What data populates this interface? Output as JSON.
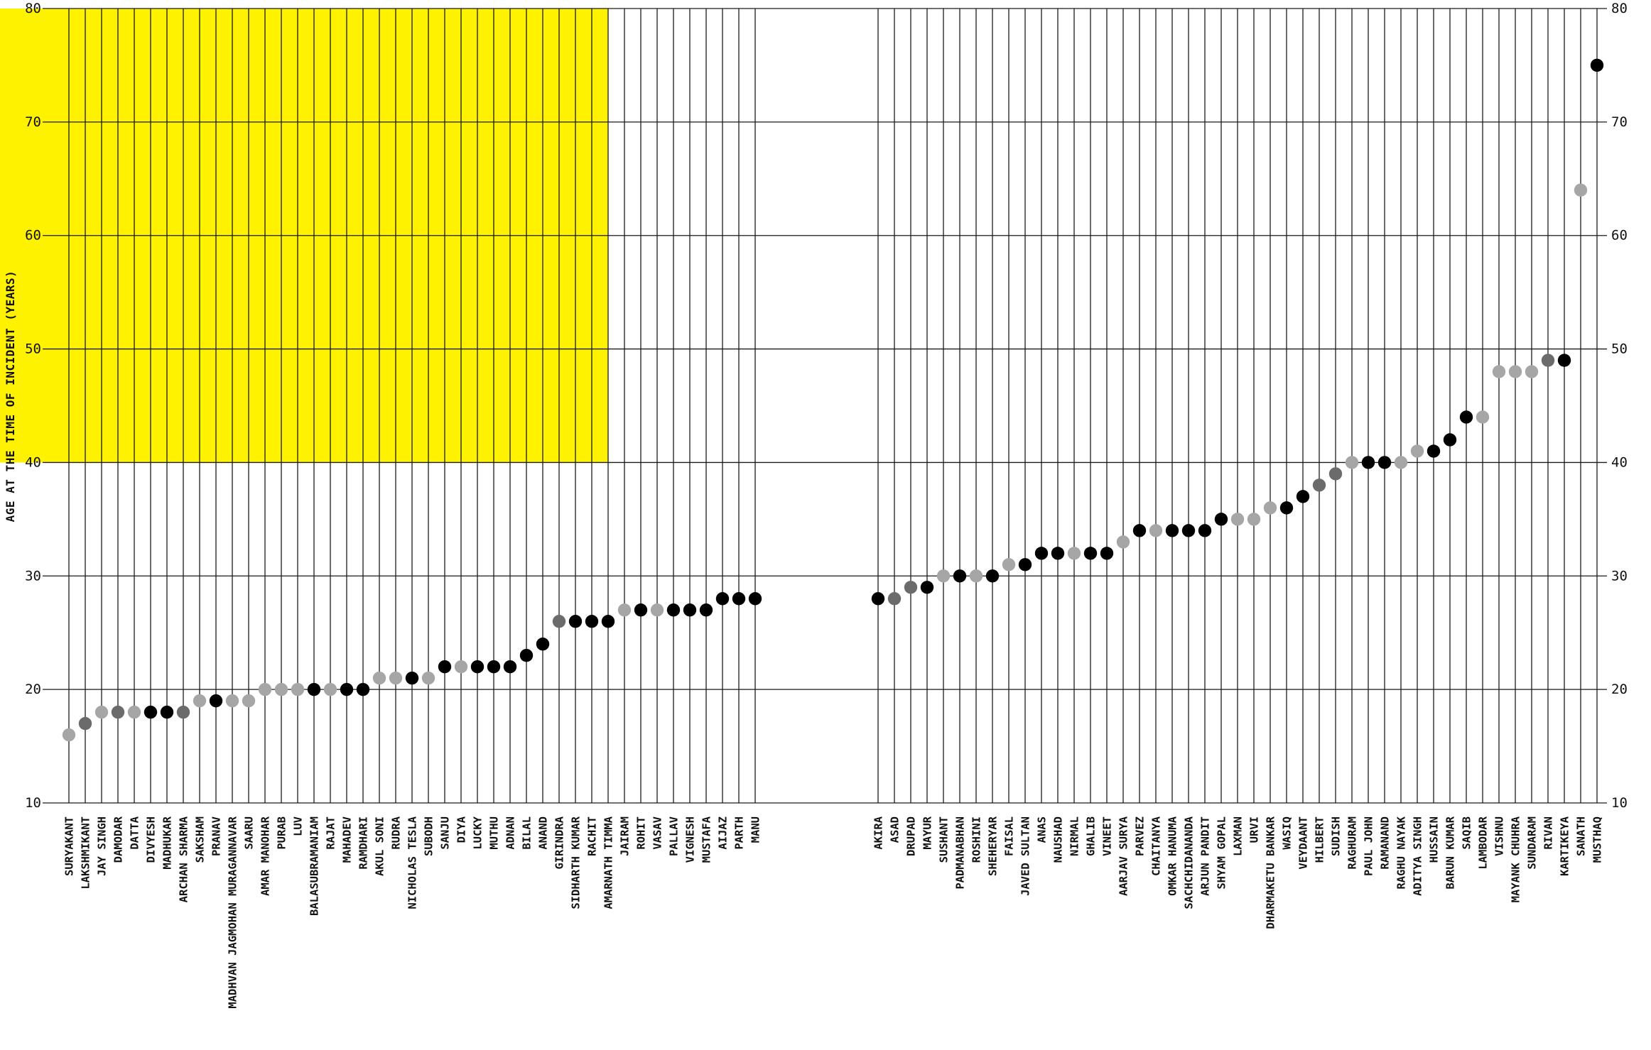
{
  "chart_data": {
    "type": "scatter",
    "ylabel": "AGE AT THE TIME OF INCIDENT (YEARS)",
    "ylim": [
      10,
      80
    ],
    "yticks": [
      10,
      20,
      30,
      40,
      50,
      60,
      70,
      80
    ],
    "grid": true,
    "highlight_region": {
      "y_from": 40,
      "y_to": 80,
      "x_from_index": 0,
      "x_to_index": 33,
      "color": "#FFF200"
    },
    "shade_colors": {
      "dark": "#000000",
      "mid": "#6b6b6b",
      "light": "#a6a6a6"
    },
    "line_color": "#1a1a1a",
    "groups": [
      {
        "points": [
          {
            "name": "SURYAKANT",
            "age": 16,
            "shade": "light"
          },
          {
            "name": "LAKSHMIKANT",
            "age": 17,
            "shade": "mid"
          },
          {
            "name": "JAY SINGH",
            "age": 18,
            "shade": "light"
          },
          {
            "name": "DAMODAR",
            "age": 18,
            "shade": "mid"
          },
          {
            "name": "DATTA",
            "age": 18,
            "shade": "light"
          },
          {
            "name": "DIVYESH",
            "age": 18,
            "shade": "dark"
          },
          {
            "name": "MADHUKAR",
            "age": 18,
            "shade": "dark"
          },
          {
            "name": "ARCHAN SHARMA",
            "age": 18,
            "shade": "mid"
          },
          {
            "name": "SAKSHAM",
            "age": 19,
            "shade": "light"
          },
          {
            "name": "PRANAV",
            "age": 19,
            "shade": "dark"
          },
          {
            "name": "MADHVAN JAGMOHAN MURAGANNAVAR",
            "age": 19,
            "shade": "light"
          },
          {
            "name": "SAARU",
            "age": 19,
            "shade": "light"
          },
          {
            "name": "AMAR MANOHAR",
            "age": 20,
            "shade": "light"
          },
          {
            "name": "PURAB",
            "age": 20,
            "shade": "light"
          },
          {
            "name": "LUV",
            "age": 20,
            "shade": "light"
          },
          {
            "name": "BALASUBRAMANIAM",
            "age": 20,
            "shade": "dark"
          },
          {
            "name": "RAJAT",
            "age": 20,
            "shade": "light"
          },
          {
            "name": "MAHADEV",
            "age": 20,
            "shade": "dark"
          },
          {
            "name": "RAMDHARI",
            "age": 20,
            "shade": "dark"
          },
          {
            "name": "AKUL SONI",
            "age": 21,
            "shade": "light"
          },
          {
            "name": "RUDRA",
            "age": 21,
            "shade": "light"
          },
          {
            "name": "NICHOLAS TESLA",
            "age": 21,
            "shade": "dark"
          },
          {
            "name": "SUBODH",
            "age": 21,
            "shade": "light"
          },
          {
            "name": "SANJU",
            "age": 22,
            "shade": "dark"
          },
          {
            "name": "DIYA",
            "age": 22,
            "shade": "light"
          },
          {
            "name": "LUCKY",
            "age": 22,
            "shade": "dark"
          },
          {
            "name": "MUTHU",
            "age": 22,
            "shade": "dark"
          },
          {
            "name": "ADNAN",
            "age": 22,
            "shade": "dark"
          },
          {
            "name": "BILAL",
            "age": 23,
            "shade": "dark"
          },
          {
            "name": "ANAND",
            "age": 24,
            "shade": "dark"
          },
          {
            "name": "GIRINDRA",
            "age": 26,
            "shade": "mid"
          },
          {
            "name": "SIDHARTH KUMAR",
            "age": 26,
            "shade": "dark"
          },
          {
            "name": "RACHIT",
            "age": 26,
            "shade": "dark"
          },
          {
            "name": "AMARNATH TIMMA",
            "age": 26,
            "shade": "dark"
          },
          {
            "name": "JAIRAM",
            "age": 27,
            "shade": "light"
          },
          {
            "name": "ROHIT",
            "age": 27,
            "shade": "dark"
          },
          {
            "name": "VASAV",
            "age": 27,
            "shade": "light"
          },
          {
            "name": "PALLAV",
            "age": 27,
            "shade": "dark"
          },
          {
            "name": "VIGNESH",
            "age": 27,
            "shade": "dark"
          },
          {
            "name": "MUSTAFA",
            "age": 27,
            "shade": "dark"
          },
          {
            "name": "AIJAZ",
            "age": 28,
            "shade": "dark"
          },
          {
            "name": "PARTH",
            "age": 28,
            "shade": "dark"
          },
          {
            "name": "MANU",
            "age": 28,
            "shade": "dark"
          }
        ]
      },
      {
        "points": [
          {
            "name": "AKIRA",
            "age": 28,
            "shade": "dark"
          },
          {
            "name": "ASAD",
            "age": 28,
            "shade": "mid"
          },
          {
            "name": "DRUPAD",
            "age": 29,
            "shade": "mid"
          },
          {
            "name": "MAYUR",
            "age": 29,
            "shade": "dark"
          },
          {
            "name": "SUSHANT",
            "age": 30,
            "shade": "light"
          },
          {
            "name": "PADMANABHAN",
            "age": 30,
            "shade": "dark"
          },
          {
            "name": "ROSHINI",
            "age": 30,
            "shade": "light"
          },
          {
            "name": "SHEHERYAR",
            "age": 30,
            "shade": "dark"
          },
          {
            "name": "FAISAL",
            "age": 31,
            "shade": "light"
          },
          {
            "name": "JAVED SULTAN",
            "age": 31,
            "shade": "dark"
          },
          {
            "name": "ANAS",
            "age": 32,
            "shade": "dark"
          },
          {
            "name": "NAUSHAD",
            "age": 32,
            "shade": "dark"
          },
          {
            "name": "NIRMAL",
            "age": 32,
            "shade": "light"
          },
          {
            "name": "GHALIB",
            "age": 32,
            "shade": "dark"
          },
          {
            "name": "VINEET",
            "age": 32,
            "shade": "dark"
          },
          {
            "name": "AARJAV SURYA",
            "age": 33,
            "shade": "light"
          },
          {
            "name": "PARVEZ",
            "age": 34,
            "shade": "dark"
          },
          {
            "name": "CHAITANYA",
            "age": 34,
            "shade": "light"
          },
          {
            "name": "OMKAR HANUMA",
            "age": 34,
            "shade": "dark"
          },
          {
            "name": "SACHCHIDANANDA",
            "age": 34,
            "shade": "dark"
          },
          {
            "name": "ARJUN PANDIT",
            "age": 34,
            "shade": "dark"
          },
          {
            "name": "SHYAM GOPAL",
            "age": 35,
            "shade": "dark"
          },
          {
            "name": "LAXMAN",
            "age": 35,
            "shade": "light"
          },
          {
            "name": "URVI",
            "age": 35,
            "shade": "light"
          },
          {
            "name": "DHARMAKETU BANKAR",
            "age": 36,
            "shade": "light"
          },
          {
            "name": "WASIQ",
            "age": 36,
            "shade": "dark"
          },
          {
            "name": "VEYDAANT",
            "age": 37,
            "shade": "dark"
          },
          {
            "name": "HILBERT",
            "age": 38,
            "shade": "mid"
          },
          {
            "name": "SUDISH",
            "age": 39,
            "shade": "mid"
          },
          {
            "name": "RAGHURAM",
            "age": 40,
            "shade": "light"
          },
          {
            "name": "PAUL JOHN",
            "age": 40,
            "shade": "dark"
          },
          {
            "name": "RAMANAND",
            "age": 40,
            "shade": "dark"
          },
          {
            "name": "RAGHU NAYAK",
            "age": 40,
            "shade": "light"
          },
          {
            "name": "ADITYA SINGH",
            "age": 41,
            "shade": "light"
          },
          {
            "name": "HUSSAIN",
            "age": 41,
            "shade": "dark"
          },
          {
            "name": "BARUN KUMAR",
            "age": 42,
            "shade": "dark"
          },
          {
            "name": "SAQIB",
            "age": 44,
            "shade": "dark"
          },
          {
            "name": "LAMBODAR",
            "age": 44,
            "shade": "light"
          },
          {
            "name": "VISHNU",
            "age": 48,
            "shade": "light"
          },
          {
            "name": "MAYANK CHUHRA",
            "age": 48,
            "shade": "light"
          },
          {
            "name": "SUNDARAM",
            "age": 48,
            "shade": "light"
          },
          {
            "name": "RIVAN",
            "age": 49,
            "shade": "mid"
          },
          {
            "name": "KARTIKEYA",
            "age": 49,
            "shade": "dark"
          },
          {
            "name": "SANATH",
            "age": 64,
            "shade": "light"
          },
          {
            "name": "MUSTHAQ",
            "age": 75,
            "shade": "dark"
          }
        ]
      }
    ]
  }
}
